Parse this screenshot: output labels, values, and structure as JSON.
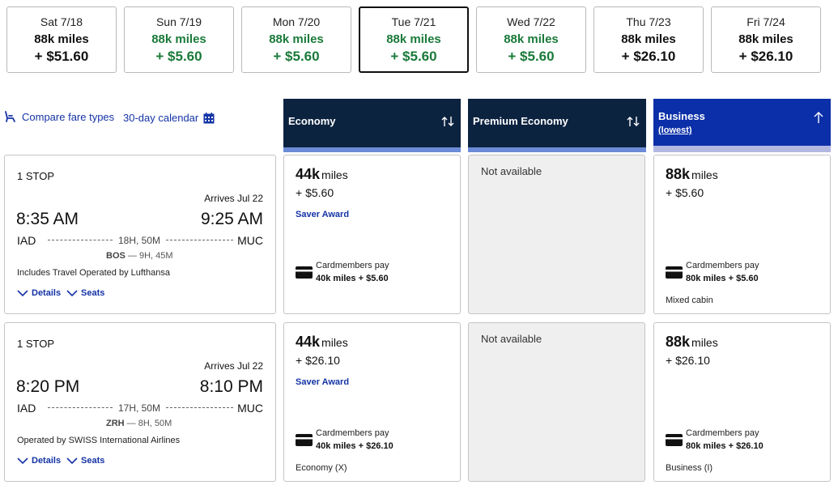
{
  "dates": [
    {
      "day": "Sat 7/18",
      "miles": "88k miles",
      "tax": "+ $51.60",
      "green": false,
      "selected": false
    },
    {
      "day": "Sun 7/19",
      "miles": "88k miles",
      "tax": "+ $5.60",
      "green": true,
      "selected": false
    },
    {
      "day": "Mon 7/20",
      "miles": "88k miles",
      "tax": "+ $5.60",
      "green": true,
      "selected": false
    },
    {
      "day": "Tue 7/21",
      "miles": "88k miles",
      "tax": "+ $5.60",
      "green": true,
      "selected": true
    },
    {
      "day": "Wed 7/22",
      "miles": "88k miles",
      "tax": "+ $5.60",
      "green": true,
      "selected": false
    },
    {
      "day": "Thu 7/23",
      "miles": "88k miles",
      "tax": "+ $26.10",
      "green": false,
      "selected": false
    },
    {
      "day": "Fri 7/24",
      "miles": "88k miles",
      "tax": "+ $26.10",
      "green": false,
      "selected": false
    }
  ],
  "tools": {
    "compare": "Compare fare types",
    "calendar": "30-day calendar"
  },
  "columns": {
    "economy": {
      "label": "Economy"
    },
    "premium": {
      "label": "Premium Economy"
    },
    "business": {
      "label": "Business",
      "sub": "(lowest)"
    }
  },
  "flights": [
    {
      "stops": "1 STOP",
      "arrives": "Arrives Jul 22",
      "dep_time": "8:35 AM",
      "arr_time": "9:25 AM",
      "dep_code": "IAD",
      "arr_code": "MUC",
      "duration": "18H, 50M",
      "layover_code": "BOS",
      "layover_time": "— 9H, 45M",
      "operated": "Includes Travel Operated by Lufthansa",
      "details": "Details",
      "seats": "Seats",
      "economy": {
        "miles": "44k",
        "unit": "miles",
        "tax": "+ $5.60",
        "saver": "Saver Award",
        "cm_label": "Cardmembers pay",
        "cm_price": "40k miles + $5.60",
        "note": ""
      },
      "premium": {
        "na": "Not available"
      },
      "business": {
        "miles": "88k",
        "unit": "miles",
        "tax": "+ $5.60",
        "cm_label": "Cardmembers pay",
        "cm_price": "80k miles + $5.60",
        "note": "Mixed cabin"
      }
    },
    {
      "stops": "1 STOP",
      "arrives": "Arrives Jul 22",
      "dep_time": "8:20 PM",
      "arr_time": "8:10 PM",
      "dep_code": "IAD",
      "arr_code": "MUC",
      "duration": "17H, 50M",
      "layover_code": "ZRH",
      "layover_time": "— 8H, 50M",
      "operated": "Operated by SWISS International Airlines",
      "details": "Details",
      "seats": "Seats",
      "economy": {
        "miles": "44k",
        "unit": "miles",
        "tax": "+ $26.10",
        "saver": "Saver Award",
        "cm_label": "Cardmembers pay",
        "cm_price": "40k miles + $26.10",
        "note": "Economy (X)"
      },
      "premium": {
        "na": "Not available"
      },
      "business": {
        "miles": "88k",
        "unit": "miles",
        "tax": "+ $26.10",
        "cm_label": "Cardmembers pay",
        "cm_price": "80k miles + $26.10",
        "note": "Business (I)"
      }
    }
  ]
}
